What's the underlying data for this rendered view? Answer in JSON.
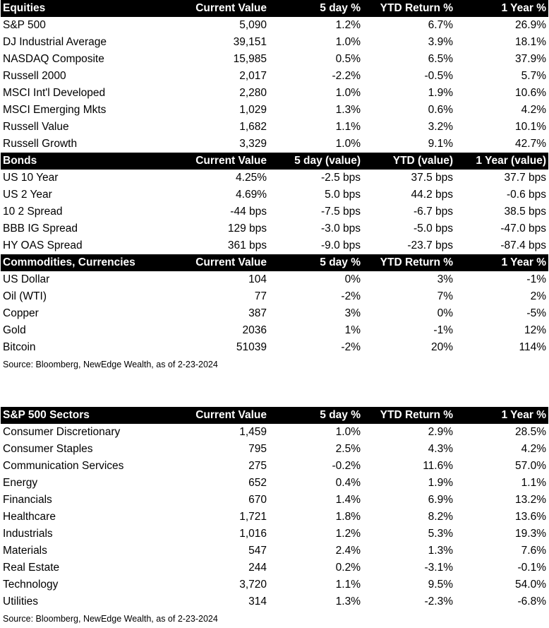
{
  "tables": [
    {
      "headers": [
        "Equities",
        "Current Value",
        "5 day %",
        "YTD Return %",
        "1 Year %"
      ],
      "rows": [
        [
          "S&P 500",
          "5,090",
          "1.2%",
          "6.7%",
          "26.9%"
        ],
        [
          "DJ Industrial Average",
          "39,151",
          "1.0%",
          "3.9%",
          "18.1%"
        ],
        [
          "NASDAQ Composite",
          "15,985",
          "0.5%",
          "6.5%",
          "37.9%"
        ],
        [
          "Russell 2000",
          "2,017",
          "-2.2%",
          "-0.5%",
          "5.7%"
        ],
        [
          "MSCI Int'l Developed",
          "2,280",
          "1.0%",
          "1.9%",
          "10.6%"
        ],
        [
          "MSCI Emerging Mkts",
          "1,029",
          "1.3%",
          "0.6%",
          "4.2%"
        ],
        [
          "Russell Value",
          "1,682",
          "1.1%",
          "3.2%",
          "10.1%"
        ],
        [
          "Russell Growth",
          "3,329",
          "1.0%",
          "9.1%",
          "42.7%"
        ]
      ]
    },
    {
      "headers": [
        "Bonds",
        "Current Value",
        "5 day (value)",
        "YTD (value)",
        "1 Year (value)"
      ],
      "rows": [
        [
          "US 10 Year",
          "4.25%",
          "-2.5 bps",
          "37.5 bps",
          "37.7 bps"
        ],
        [
          "US 2 Year",
          "4.69%",
          "5.0 bps",
          "44.2 bps",
          "-0.6 bps"
        ],
        [
          "10 2 Spread",
          "-44 bps",
          "-7.5 bps",
          "-6.7 bps",
          "38.5 bps"
        ],
        [
          "BBB IG Spread",
          "129 bps",
          "-3.0 bps",
          "-5.0 bps",
          "-47.0 bps"
        ],
        [
          "HY OAS Spread",
          "361 bps",
          "-9.0 bps",
          "-23.7 bps",
          "-87.4 bps"
        ]
      ]
    },
    {
      "headers": [
        "Commodities, Currencies",
        "Current Value",
        "5 day %",
        "YTD Return %",
        "1 Year %"
      ],
      "rows": [
        [
          "US Dollar",
          "104",
          "0%",
          "3%",
          "-1%"
        ],
        [
          "Oil (WTI)",
          "77",
          "-2%",
          "7%",
          "2%"
        ],
        [
          "Copper",
          "387",
          "3%",
          "0%",
          "-5%"
        ],
        [
          "Gold",
          "2036",
          "1%",
          "-1%",
          "12%"
        ],
        [
          "Bitcoin",
          "51039",
          "-2%",
          "20%",
          "114%"
        ]
      ]
    },
    {
      "headers": [
        "S&P 500 Sectors",
        "Current Value",
        "5 day %",
        "YTD Return %",
        "1 Year %"
      ],
      "rows": [
        [
          "Consumer Discretionary",
          "1,459",
          "1.0%",
          "2.9%",
          "28.5%"
        ],
        [
          "Consumer Staples",
          "795",
          "2.5%",
          "4.3%",
          "4.2%"
        ],
        [
          "Communication Services",
          "275",
          "-0.2%",
          "11.6%",
          "57.0%"
        ],
        [
          "Energy",
          "652",
          "0.4%",
          "1.9%",
          "1.1%"
        ],
        [
          "Financials",
          "670",
          "1.4%",
          "6.9%",
          "13.2%"
        ],
        [
          "Healthcare",
          "1,721",
          "1.8%",
          "8.2%",
          "13.6%"
        ],
        [
          "Industrials",
          "1,016",
          "1.2%",
          "5.3%",
          "19.3%"
        ],
        [
          "Materials",
          "547",
          "2.4%",
          "1.3%",
          "7.6%"
        ],
        [
          "Real Estate",
          "244",
          "0.2%",
          "-3.1%",
          "-0.1%"
        ],
        [
          "Technology",
          "3,720",
          "1.1%",
          "9.5%",
          "54.0%"
        ],
        [
          "Utilities",
          "314",
          "1.3%",
          "-2.3%",
          "-6.8%"
        ]
      ]
    }
  ],
  "source_note_top": "Source: Bloomberg, NewEdge Wealth, as of 2-23-2024",
  "source_note_bottom": "Source: Bloomberg, NewEdge Wealth, as of 2-23-2024"
}
